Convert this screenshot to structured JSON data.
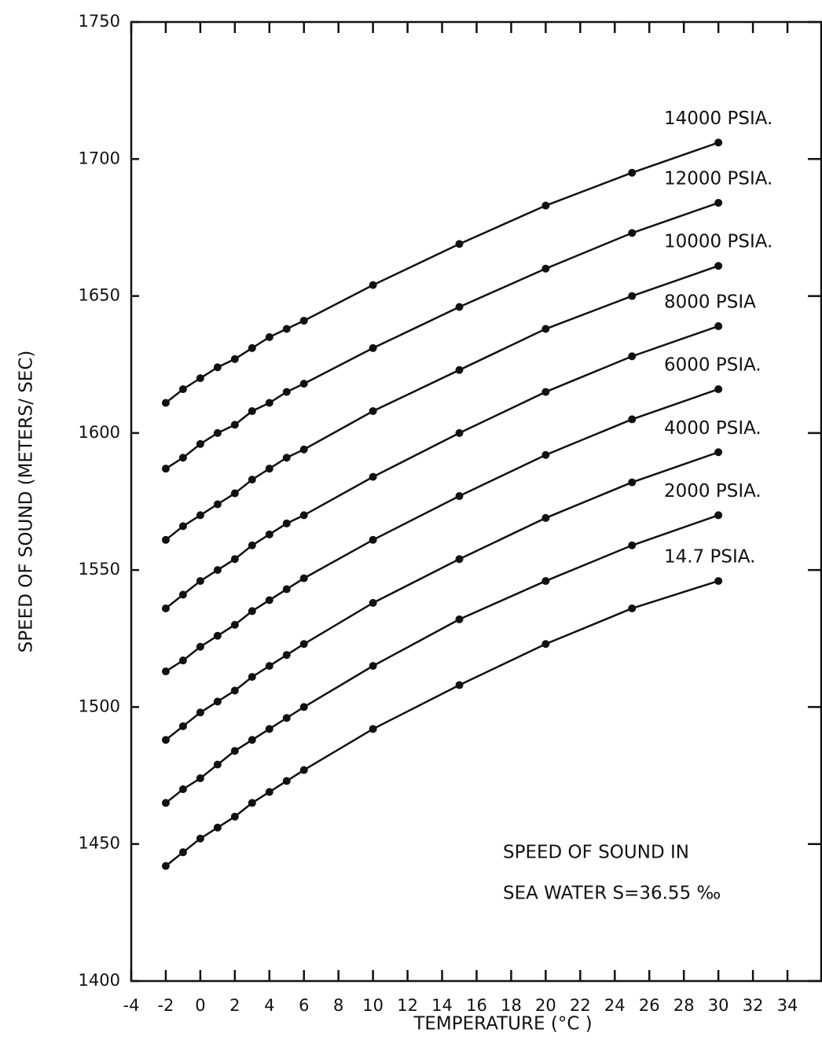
{
  "chart_data": {
    "type": "line",
    "xlabel": "TEMPERATURE (°C )",
    "ylabel": "SPEED OF SOUND (METERS/ SEC)",
    "annotations": [
      "SPEED OF SOUND IN",
      "SEA WATER S=36.55 ‰"
    ],
    "x": [
      -2,
      -1,
      0,
      1,
      2,
      3,
      4,
      5,
      6,
      10,
      15,
      20,
      25,
      30
    ],
    "xlim": [
      -4,
      36
    ],
    "xticks": [
      -4,
      -2,
      0,
      2,
      4,
      6,
      8,
      10,
      12,
      14,
      16,
      18,
      20,
      22,
      24,
      26,
      28,
      30,
      32,
      34
    ],
    "ylim": [
      1400,
      1750
    ],
    "yticks": [
      1400,
      1450,
      1500,
      1550,
      1600,
      1650,
      1700,
      1750
    ],
    "series": [
      {
        "name": "14.7 PSIA.",
        "color": "#111111",
        "values": [
          1442,
          1447,
          1452,
          1456,
          1460,
          1465,
          1469,
          1473,
          1477,
          1492,
          1508,
          1523,
          1536,
          1546
        ]
      },
      {
        "name": "2000 PSIA.",
        "color": "#111111",
        "values": [
          1465,
          1470,
          1474,
          1479,
          1484,
          1488,
          1492,
          1496,
          1500,
          1515,
          1532,
          1546,
          1559,
          1570
        ]
      },
      {
        "name": "4000 PSIA.",
        "color": "#111111",
        "values": [
          1488,
          1493,
          1498,
          1502,
          1506,
          1511,
          1515,
          1519,
          1523,
          1538,
          1554,
          1569,
          1582,
          1593
        ]
      },
      {
        "name": "6000 PSIA.",
        "color": "#111111",
        "values": [
          1513,
          1517,
          1522,
          1526,
          1530,
          1535,
          1539,
          1543,
          1547,
          1561,
          1577,
          1592,
          1605,
          1616
        ]
      },
      {
        "name": "8000 PSIA",
        "color": "#111111",
        "values": [
          1536,
          1541,
          1546,
          1550,
          1554,
          1559,
          1563,
          1567,
          1570,
          1584,
          1600,
          1615,
          1628,
          1639
        ]
      },
      {
        "name": "10000 PSIA.",
        "color": "#111111",
        "values": [
          1561,
          1566,
          1570,
          1574,
          1578,
          1583,
          1587,
          1591,
          1594,
          1608,
          1623,
          1638,
          1650,
          1661
        ]
      },
      {
        "name": "12000 PSIA.",
        "color": "#111111",
        "values": [
          1587,
          1591,
          1596,
          1600,
          1603,
          1608,
          1611,
          1615,
          1618,
          1631,
          1646,
          1660,
          1673,
          1684
        ]
      },
      {
        "name": "14000 PSIA.",
        "color": "#111111",
        "values": [
          1611,
          1616,
          1620,
          1624,
          1627,
          1631,
          1635,
          1638,
          1641,
          1654,
          1669,
          1683,
          1695,
          1706
        ]
      }
    ]
  }
}
